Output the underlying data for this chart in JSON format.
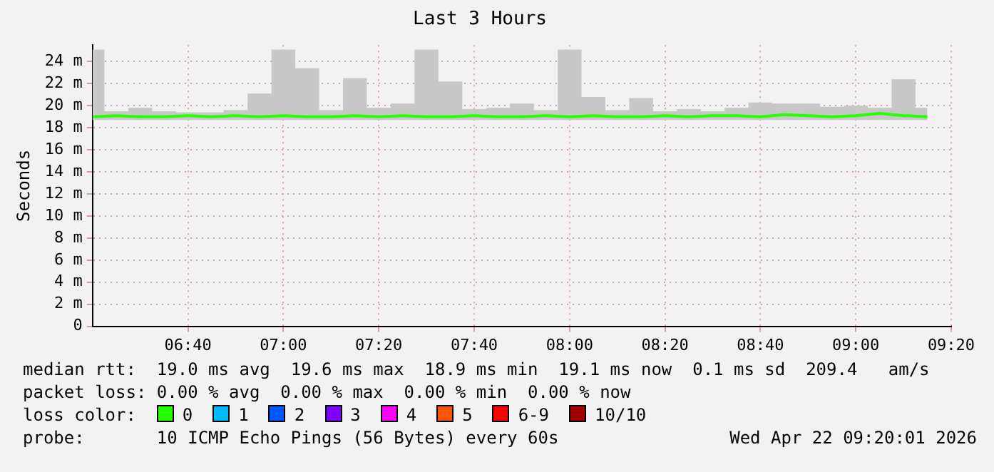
{
  "chart_data": {
    "type": "line",
    "title": "Last 3 Hours",
    "ylabel": "Seconds",
    "x": [
      6.3333,
      6.4167,
      6.5,
      6.5833,
      6.6667,
      6.75,
      6.8333,
      6.9167,
      7.0,
      7.0833,
      7.1667,
      7.25,
      7.3333,
      7.4167,
      7.5,
      7.5833,
      7.6667,
      7.75,
      7.8333,
      7.9167,
      8.0,
      8.0833,
      8.1667,
      8.25,
      8.3333,
      8.4167,
      8.5,
      8.5833,
      8.6667,
      8.75,
      8.8333,
      8.9167,
      9.0,
      9.0833,
      9.1667,
      9.25
    ],
    "xlim": [
      6.3333,
      9.3333
    ],
    "xticks": [
      {
        "value": 6.6667,
        "label": "06:40"
      },
      {
        "value": 7,
        "label": "07:00"
      },
      {
        "value": 7.3333,
        "label": "07:20"
      },
      {
        "value": 7.6667,
        "label": "07:40"
      },
      {
        "value": 8,
        "label": "08:00"
      },
      {
        "value": 8.3333,
        "label": "08:20"
      },
      {
        "value": 8.6667,
        "label": "08:40"
      },
      {
        "value": 9,
        "label": "09:00"
      },
      {
        "value": 9.3333,
        "label": "09:20"
      }
    ],
    "ylim": [
      0,
      25.5
    ],
    "yticks": [
      {
        "value": 0,
        "label": "0"
      },
      {
        "value": 2,
        "label": "2 m"
      },
      {
        "value": 4,
        "label": "4 m"
      },
      {
        "value": 6,
        "label": "6 m"
      },
      {
        "value": 8,
        "label": "8 m"
      },
      {
        "value": 10,
        "label": "10 m"
      },
      {
        "value": 12,
        "label": "12 m"
      },
      {
        "value": 14,
        "label": "14 m"
      },
      {
        "value": 16,
        "label": "16 m"
      },
      {
        "value": 18,
        "label": "18 m"
      },
      {
        "value": 20,
        "label": "20 m"
      },
      {
        "value": 22,
        "label": "22 m"
      },
      {
        "value": 24,
        "label": "24 m"
      }
    ],
    "series": [
      {
        "name": "0",
        "color": "#26ff00",
        "values": [
          19.0,
          19.1,
          19.0,
          19.0,
          19.1,
          19.0,
          19.1,
          19.0,
          19.1,
          19.0,
          19.0,
          19.1,
          19.0,
          19.1,
          19.0,
          19.0,
          19.1,
          19.0,
          19.0,
          19.1,
          19.0,
          19.1,
          19.0,
          19.0,
          19.1,
          19.0,
          19.1,
          19.1,
          19.0,
          19.2,
          19.1,
          19.0,
          19.1,
          19.3,
          19.1,
          19.0
        ],
        "lower": [
          18.7,
          18.7,
          18.7,
          18.7,
          18.7,
          18.7,
          18.7,
          18.7,
          18.7,
          18.7,
          18.7,
          18.7,
          18.7,
          18.7,
          18.7,
          18.7,
          18.7,
          18.7,
          18.7,
          18.7,
          18.7,
          18.7,
          18.7,
          18.7,
          18.7,
          18.7,
          18.7,
          18.7,
          18.7,
          18.7,
          18.7,
          18.7,
          18.7,
          18.7,
          18.7,
          18.7
        ],
        "upper": [
          25.1,
          19.5,
          19.8,
          19.5,
          19.4,
          19.4,
          19.6,
          21.1,
          25.1,
          23.4,
          19.6,
          22.5,
          19.8,
          20.2,
          25.1,
          22.2,
          19.7,
          19.8,
          20.2,
          19.6,
          25.1,
          20.8,
          19.6,
          20.7,
          19.5,
          19.7,
          19.5,
          19.8,
          20.3,
          20.2,
          20.2,
          19.9,
          20.0,
          19.8,
          22.4,
          19.8
        ]
      },
      {
        "name": "1",
        "color": "#00b8ff",
        "values": [
          null,
          null,
          null,
          null,
          null,
          null,
          null,
          null,
          null,
          null,
          null,
          null,
          null,
          null,
          null,
          null,
          null,
          null,
          null,
          null,
          null,
          null,
          null,
          null,
          null,
          null,
          null,
          null,
          null,
          null,
          null,
          null,
          null,
          null,
          null,
          null
        ]
      },
      {
        "name": "2",
        "color": "#0059ff",
        "values": [
          null,
          null,
          null,
          null,
          null,
          null,
          null,
          null,
          null,
          null,
          null,
          null,
          null,
          null,
          null,
          null,
          null,
          null,
          null,
          null,
          null,
          null,
          null,
          null,
          null,
          null,
          null,
          null,
          null,
          null,
          null,
          null,
          null,
          null,
          null,
          null
        ]
      },
      {
        "name": "3",
        "color": "#7e00ff",
        "values": [
          null,
          null,
          null,
          null,
          null,
          null,
          null,
          null,
          null,
          null,
          null,
          null,
          null,
          null,
          null,
          null,
          null,
          null,
          null,
          null,
          null,
          null,
          null,
          null,
          null,
          null,
          null,
          null,
          null,
          null,
          null,
          null,
          null,
          null,
          null,
          null
        ]
      },
      {
        "name": "4",
        "color": "#ff00ff",
        "values": [
          null,
          null,
          null,
          null,
          null,
          null,
          null,
          null,
          null,
          null,
          null,
          null,
          null,
          null,
          null,
          null,
          null,
          null,
          null,
          null,
          null,
          null,
          null,
          null,
          null,
          null,
          null,
          null,
          null,
          null,
          null,
          null,
          null,
          null,
          null,
          null
        ]
      },
      {
        "name": "5",
        "color": "#ff5500",
        "values": [
          null,
          null,
          null,
          null,
          null,
          null,
          null,
          null,
          null,
          null,
          null,
          null,
          null,
          null,
          null,
          null,
          null,
          null,
          null,
          null,
          null,
          null,
          null,
          null,
          null,
          null,
          null,
          null,
          null,
          null,
          null,
          null,
          null,
          null,
          null,
          null
        ]
      },
      {
        "name": "6-9",
        "color": "#ff0000",
        "values": [
          null,
          null,
          null,
          null,
          null,
          null,
          null,
          null,
          null,
          null,
          null,
          null,
          null,
          null,
          null,
          null,
          null,
          null,
          null,
          null,
          null,
          null,
          null,
          null,
          null,
          null,
          null,
          null,
          null,
          null,
          null,
          null,
          null,
          null,
          null,
          null
        ]
      },
      {
        "name": "10/10",
        "color": "#a10000",
        "values": [
          null,
          null,
          null,
          null,
          null,
          null,
          null,
          null,
          null,
          null,
          null,
          null,
          null,
          null,
          null,
          null,
          null,
          null,
          null,
          null,
          null,
          null,
          null,
          null,
          null,
          null,
          null,
          null,
          null,
          null,
          null,
          null,
          null,
          null,
          null,
          null
        ]
      }
    ],
    "legend": "bottom",
    "legend_title": "loss color:",
    "grid": true,
    "marker": "none",
    "line_style": "solid",
    "annotations": [
      "median rtt:  19.0 ms avg  19.6 ms max  18.9 ms min  19.1 ms now  0.1 ms sd  209.4   am/s",
      "packet loss: 0.00 % avg  0.00 % max  0.00 % min  0.00 % now",
      "probe:       10 ICMP Echo Pings (56 Bytes) every 60s",
      "Wed Apr 22 09:20:01 2026"
    ]
  }
}
